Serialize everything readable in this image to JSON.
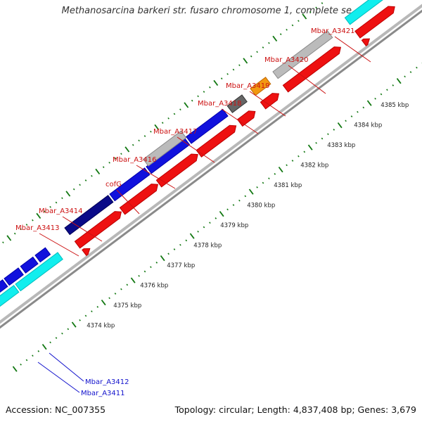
{
  "title": "Methanosarcina barkeri str. fusaro chromosome 1, complete se...",
  "footer": {
    "accession": "Accession: NC_007355",
    "topology": "Topology: circular; Length: 4,837,408 bp; Genes: 3,679"
  },
  "ruler": {
    "labels": [
      "4374 kbp",
      "4375 kbp",
      "4376 kbp",
      "4377 kbp",
      "4378 kbp",
      "4379 kbp",
      "4380 kbp",
      "4381 kbp",
      "4382 kbp",
      "4383 kbp",
      "4384 kbp",
      "4385 kbp"
    ]
  },
  "genes": [
    {
      "label": "Mbar_A3413",
      "label_color": "red"
    },
    {
      "label": "Mbar_A3414",
      "label_color": "red"
    },
    {
      "label": "cofG",
      "label_color": "red"
    },
    {
      "label": "Mbar_A3416",
      "label_color": "red"
    },
    {
      "label": "Mbar_A3417",
      "label_color": "red"
    },
    {
      "label": "Mbar_A3418",
      "label_color": "red"
    },
    {
      "label": "Mbar_A3419",
      "label_color": "red"
    },
    {
      "label": "Mbar_A3420",
      "label_color": "red"
    },
    {
      "label": "Mbar_A3421",
      "label_color": "red"
    },
    {
      "label": "Mbar_A3412",
      "label_color": "blue"
    },
    {
      "label": "Mbar_A3411",
      "label_color": "blue"
    }
  ],
  "colors": {
    "cds": "#ee1111",
    "gene_navy": "#0a0a88",
    "gene_blue": "#1111dd",
    "gene_gray": "#bbbbbb",
    "gene_darkgray": "#666666",
    "gene_orange": "#f29811",
    "gene_cyan": "#11eeee",
    "tick": "#117711",
    "backbone": "#999999"
  }
}
